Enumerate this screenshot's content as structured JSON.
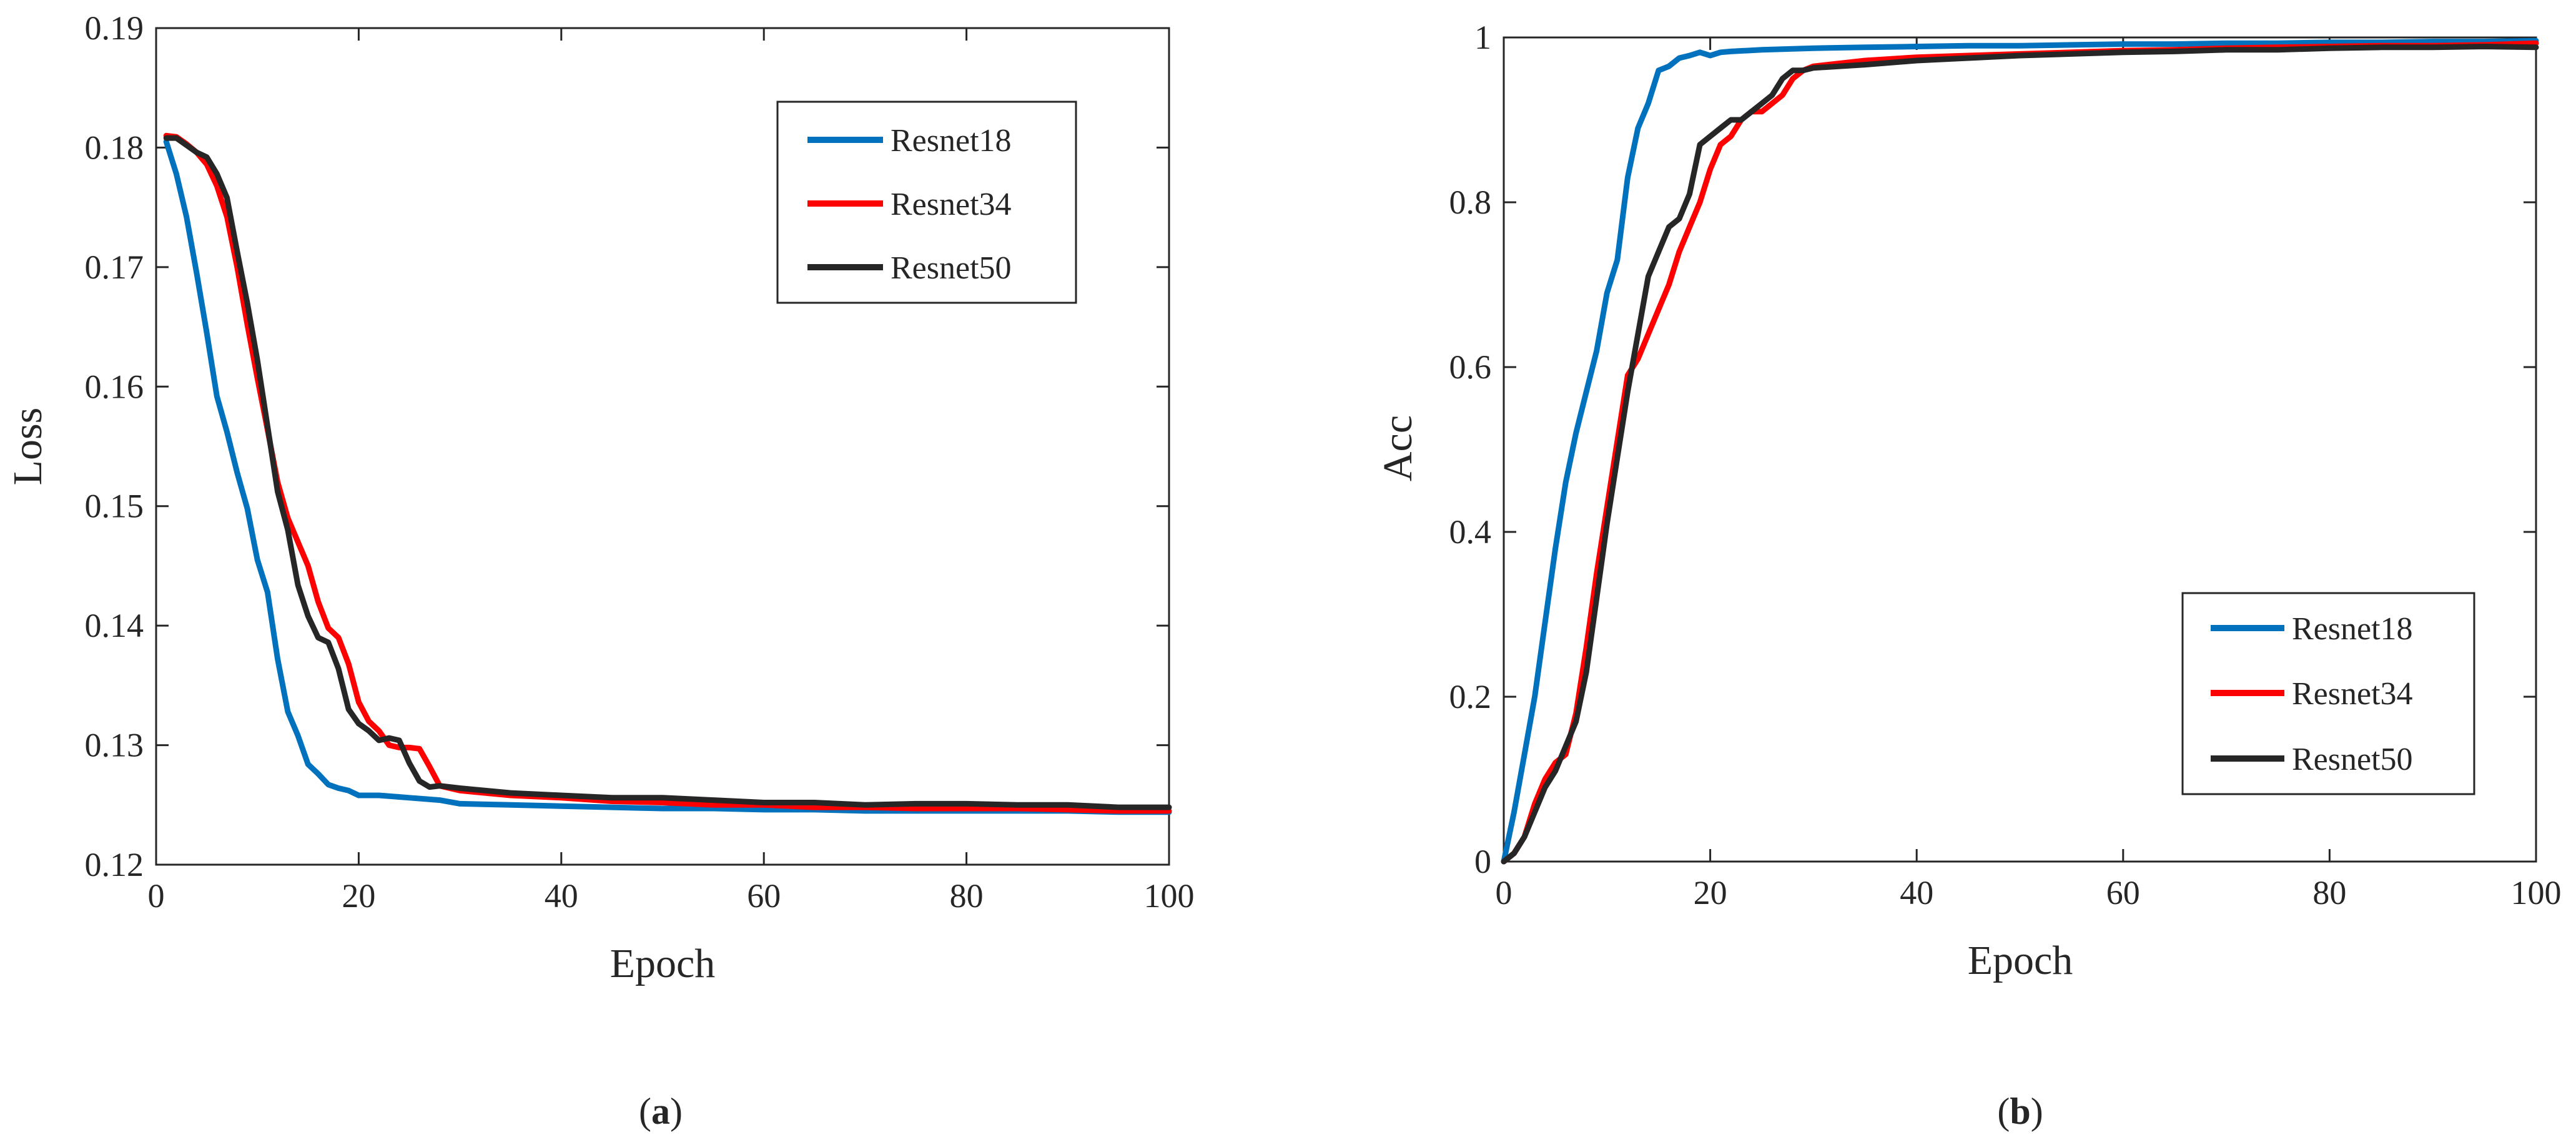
{
  "chart_data": [
    {
      "type": "line",
      "xlabel": "Epoch",
      "ylabel": "Loss",
      "xlim": [
        0,
        100
      ],
      "ylim": [
        0.12,
        0.19
      ],
      "xticks": [
        0,
        20,
        40,
        60,
        80,
        100
      ],
      "xtick_labels": [
        "0",
        "20",
        "40",
        "60",
        "80",
        "100"
      ],
      "yticks": [
        0.12,
        0.13,
        0.14,
        0.15,
        0.16,
        0.17,
        0.18,
        0.19
      ],
      "ytick_labels": [
        "0.12",
        "0.13",
        "0.14",
        "0.15",
        "0.16",
        "0.17",
        "0.18",
        "0.19"
      ],
      "legend_position": "top-right",
      "caption_letter": "a",
      "caption_open": "(",
      "caption_close": ")",
      "series": [
        {
          "name": "Resnet18",
          "color": "#0072BD",
          "x": [
            1,
            2,
            3,
            4,
            5,
            6,
            7,
            8,
            9,
            10,
            11,
            12,
            13,
            14,
            15,
            16,
            17,
            18,
            19,
            20,
            22,
            25,
            28,
            30,
            35,
            40,
            45,
            50,
            55,
            60,
            65,
            70,
            75,
            80,
            85,
            90,
            95,
            100
          ],
          "y": [
            0.1805,
            0.1778,
            0.1742,
            0.1695,
            0.1645,
            0.1592,
            0.1562,
            0.1528,
            0.1498,
            0.1455,
            0.1428,
            0.1372,
            0.1328,
            0.1308,
            0.1284,
            0.1276,
            0.1267,
            0.1264,
            0.1262,
            0.1258,
            0.1258,
            0.1256,
            0.1254,
            0.1251,
            0.125,
            0.1249,
            0.1248,
            0.1247,
            0.1247,
            0.1246,
            0.1246,
            0.1245,
            0.1245,
            0.1245,
            0.1245,
            0.1245,
            0.1244,
            0.1244
          ]
        },
        {
          "name": "Resnet34",
          "color": "#FF0000",
          "x": [
            1,
            2,
            3,
            4,
            5,
            6,
            7,
            8,
            9,
            10,
            11,
            12,
            13,
            14,
            15,
            16,
            17,
            18,
            19,
            20,
            21,
            22,
            23,
            24,
            25,
            26,
            27,
            28,
            29,
            30,
            35,
            40,
            45,
            50,
            55,
            60,
            65,
            70,
            75,
            80,
            85,
            90,
            95,
            100
          ],
          "y": [
            0.181,
            0.1809,
            0.1803,
            0.1796,
            0.1786,
            0.1768,
            0.1742,
            0.17,
            0.1652,
            0.1607,
            0.1564,
            0.152,
            0.149,
            0.147,
            0.145,
            0.142,
            0.1398,
            0.139,
            0.1368,
            0.1336,
            0.132,
            0.1312,
            0.13,
            0.1298,
            0.1298,
            0.1297,
            0.1282,
            0.1266,
            0.1264,
            0.1262,
            0.1258,
            0.1256,
            0.1253,
            0.1252,
            0.125,
            0.125,
            0.1248,
            0.1248,
            0.1247,
            0.1247,
            0.1247,
            0.1246,
            0.1245,
            0.1245
          ]
        },
        {
          "name": "Resnet50",
          "color": "#262626",
          "x": [
            1,
            2,
            3,
            4,
            5,
            6,
            7,
            8,
            9,
            10,
            11,
            12,
            13,
            14,
            15,
            16,
            17,
            18,
            19,
            20,
            21,
            22,
            23,
            24,
            25,
            26,
            27,
            28,
            29,
            30,
            35,
            40,
            45,
            50,
            55,
            60,
            65,
            70,
            75,
            80,
            85,
            90,
            95,
            100
          ],
          "y": [
            0.1808,
            0.1808,
            0.1802,
            0.1796,
            0.1792,
            0.1778,
            0.1758,
            0.1713,
            0.167,
            0.1622,
            0.1567,
            0.1512,
            0.148,
            0.1434,
            0.1408,
            0.139,
            0.1386,
            0.1364,
            0.133,
            0.1318,
            0.1312,
            0.1304,
            0.1306,
            0.1304,
            0.1285,
            0.127,
            0.1265,
            0.1266,
            0.1265,
            0.1264,
            0.126,
            0.1258,
            0.1256,
            0.1256,
            0.1254,
            0.1252,
            0.1252,
            0.125,
            0.1251,
            0.1251,
            0.125,
            0.125,
            0.1248,
            0.1248
          ]
        }
      ]
    },
    {
      "type": "line",
      "xlabel": "Epoch",
      "ylabel": "Acc",
      "xlim": [
        0,
        100
      ],
      "ylim": [
        0,
        1
      ],
      "xticks": [
        0,
        20,
        40,
        60,
        80,
        100
      ],
      "xtick_labels": [
        "0",
        "20",
        "40",
        "60",
        "80",
        "100"
      ],
      "yticks": [
        0,
        0.2,
        0.4,
        0.6,
        0.8,
        1
      ],
      "ytick_labels": [
        "0",
        "0.2",
        "0.4",
        "0.6",
        "0.8",
        "1"
      ],
      "legend_position": "bottom-right",
      "caption_letter": "b",
      "caption_open": "(",
      "caption_close": ")",
      "series": [
        {
          "name": "Resnet18",
          "color": "#0072BD",
          "x": [
            0,
            1,
            2,
            3,
            4,
            5,
            6,
            7,
            8,
            9,
            10,
            11,
            12,
            13,
            14,
            15,
            16,
            17,
            18,
            19,
            20,
            21,
            22,
            25,
            30,
            35,
            40,
            45,
            50,
            55,
            60,
            65,
            70,
            75,
            80,
            85,
            90,
            95,
            100
          ],
          "y": [
            0,
            0.06,
            0.13,
            0.2,
            0.29,
            0.38,
            0.46,
            0.52,
            0.57,
            0.62,
            0.69,
            0.73,
            0.83,
            0.89,
            0.92,
            0.96,
            0.965,
            0.975,
            0.978,
            0.982,
            0.978,
            0.982,
            0.983,
            0.985,
            0.987,
            0.988,
            0.989,
            0.99,
            0.99,
            0.991,
            0.992,
            0.992,
            0.993,
            0.993,
            0.994,
            0.994,
            0.995,
            0.995,
            0.996
          ]
        },
        {
          "name": "Resnet34",
          "color": "#FF0000",
          "x": [
            0,
            1,
            2,
            3,
            4,
            5,
            6,
            7,
            8,
            9,
            10,
            11,
            12,
            13,
            14,
            15,
            16,
            17,
            18,
            19,
            20,
            21,
            22,
            23,
            24,
            25,
            26,
            27,
            28,
            29,
            30,
            35,
            40,
            45,
            50,
            55,
            60,
            65,
            70,
            75,
            80,
            85,
            90,
            95,
            100
          ],
          "y": [
            0,
            0.01,
            0.03,
            0.07,
            0.1,
            0.12,
            0.13,
            0.18,
            0.26,
            0.35,
            0.43,
            0.51,
            0.59,
            0.61,
            0.64,
            0.67,
            0.7,
            0.74,
            0.77,
            0.8,
            0.84,
            0.87,
            0.88,
            0.9,
            0.91,
            0.91,
            0.92,
            0.93,
            0.95,
            0.96,
            0.965,
            0.972,
            0.976,
            0.978,
            0.98,
            0.982,
            0.984,
            0.985,
            0.987,
            0.988,
            0.989,
            0.99,
            0.99,
            0.991,
            0.993
          ]
        },
        {
          "name": "Resnet50",
          "color": "#262626",
          "x": [
            0,
            1,
            2,
            3,
            4,
            5,
            6,
            7,
            8,
            9,
            10,
            11,
            12,
            13,
            14,
            15,
            16,
            17,
            18,
            19,
            20,
            21,
            22,
            23,
            24,
            25,
            26,
            27,
            28,
            29,
            30,
            35,
            40,
            45,
            50,
            55,
            60,
            65,
            70,
            75,
            80,
            85,
            90,
            95,
            100
          ],
          "y": [
            0,
            0.01,
            0.03,
            0.06,
            0.09,
            0.11,
            0.14,
            0.17,
            0.23,
            0.32,
            0.41,
            0.49,
            0.57,
            0.64,
            0.71,
            0.74,
            0.77,
            0.78,
            0.81,
            0.87,
            0.88,
            0.89,
            0.9,
            0.9,
            0.91,
            0.92,
            0.93,
            0.95,
            0.96,
            0.96,
            0.963,
            0.967,
            0.972,
            0.975,
            0.978,
            0.98,
            0.982,
            0.983,
            0.985,
            0.985,
            0.987,
            0.988,
            0.988,
            0.989,
            0.988
          ]
        }
      ]
    }
  ]
}
